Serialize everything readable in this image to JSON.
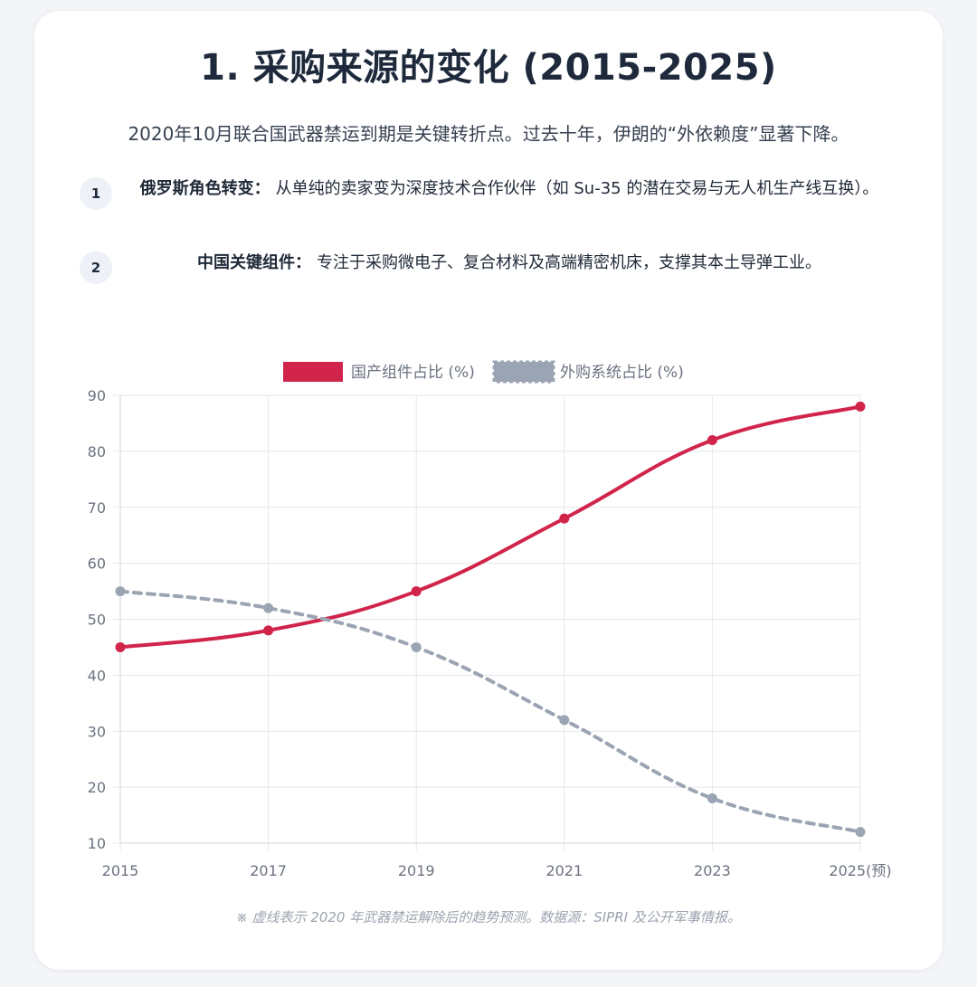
{
  "header": {
    "title": "1. 采购来源的变化 (2015-2025)",
    "intro": "2020年10月联合国武器禁运到期是关键转折点。过去十年，伊朗的“外依赖度”显著下降。"
  },
  "points": [
    {
      "num": "1",
      "label": "俄罗斯角色转变：",
      "text": "从单纯的卖家变为深度技术合作伙伴（如 Su-35 的潜在交易与无人机生产线互换）。"
    },
    {
      "num": "2",
      "label": "中国关键组件：",
      "text": "专注于采购微电子、复合材料及高端精密机床，支撑其本土导弹工业。"
    }
  ],
  "chart_data": {
    "type": "line",
    "categories": [
      "2015",
      "2017",
      "2019",
      "2021",
      "2023",
      "2025(预)"
    ],
    "series": [
      {
        "name": "国产组件占比 (%)",
        "values": [
          45,
          48,
          55,
          68,
          82,
          88
        ],
        "color": "#d1244b",
        "dashed": false
      },
      {
        "name": "外购系统占比 (%)",
        "values": [
          55,
          52,
          45,
          32,
          18,
          12
        ],
        "color": "#9aa4b2",
        "dashed": true
      }
    ],
    "ylim": [
      10,
      90
    ],
    "yticks": [
      10,
      20,
      30,
      40,
      50,
      60,
      70,
      80,
      90
    ],
    "legend": "top-center",
    "grid": true
  },
  "footer": {
    "note": "※ 虚线表示 2020 年武器禁运解除后的趋势预测。数据源：SIPRI 及公开军事情报。"
  }
}
